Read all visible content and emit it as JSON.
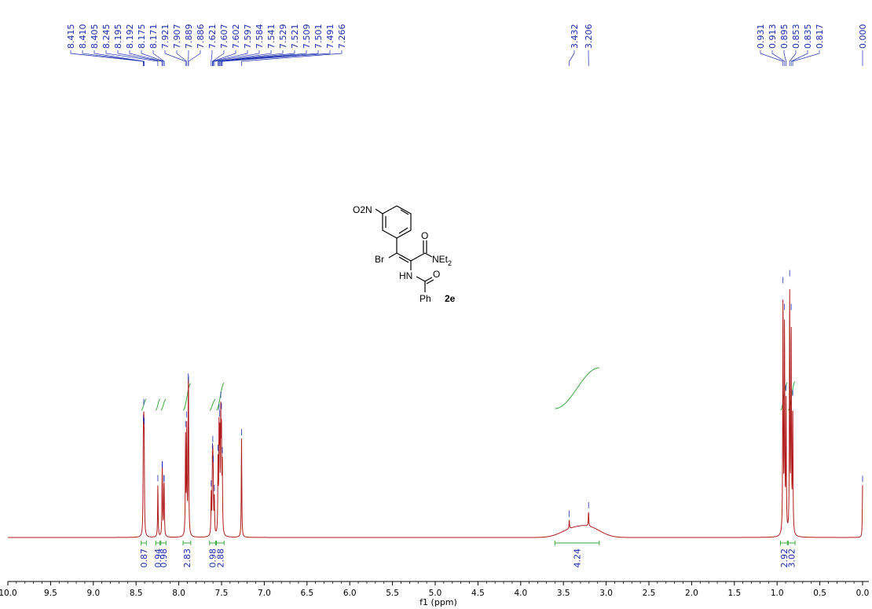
{
  "chart_data": {
    "type": "line",
    "title": "",
    "xlabel": "f1 (ppm)",
    "ylabel": "",
    "xlim": [
      10.0,
      0.0
    ],
    "x_reversed": true,
    "grid": false,
    "x_ticks": [
      "10.0",
      "9.5",
      "9.0",
      "8.5",
      "8.0",
      "7.5",
      "7.0",
      "6.5",
      "6.0",
      "5.5",
      "5.0",
      "4.5",
      "4.0",
      "3.5",
      "3.0",
      "2.5",
      "2.0",
      "1.5",
      "1.0",
      "0.5",
      "0.0"
    ],
    "series_color": "#b01a1a",
    "peak_label_color": "#1a2db0",
    "integral_color": "#3aa83a",
    "integral_label_color": "#1a2db0",
    "peak_labels": [
      "8.415",
      "8.410",
      "8.405",
      "8.245",
      "8.195",
      "8.192",
      "8.175",
      "8.171",
      "7.921",
      "7.907",
      "7.889",
      "7.886",
      "7.621",
      "7.607",
      "7.602",
      "7.597",
      "7.584",
      "7.541",
      "7.529",
      "7.521",
      "7.509",
      "7.501",
      "7.491",
      "7.266",
      "3.432",
      "3.206",
      "0.931",
      "0.913",
      "0.895",
      "0.853",
      "0.835",
      "0.817",
      "0.000"
    ],
    "peaks": [
      {
        "x": 8.415,
        "y": 0.27
      },
      {
        "x": 8.41,
        "y": 0.27
      },
      {
        "x": 8.405,
        "y": 0.26
      },
      {
        "x": 8.245,
        "y": 0.18
      },
      {
        "x": 8.195,
        "y": 0.14
      },
      {
        "x": 8.192,
        "y": 0.14
      },
      {
        "x": 8.175,
        "y": 0.12
      },
      {
        "x": 8.171,
        "y": 0.12
      },
      {
        "x": 7.921,
        "y": 0.34
      },
      {
        "x": 7.907,
        "y": 0.36
      },
      {
        "x": 7.889,
        "y": 0.33
      },
      {
        "x": 7.886,
        "y": 0.32
      },
      {
        "x": 7.621,
        "y": 0.14
      },
      {
        "x": 7.607,
        "y": 0.2
      },
      {
        "x": 7.602,
        "y": 0.19
      },
      {
        "x": 7.597,
        "y": 0.15
      },
      {
        "x": 7.584,
        "y": 0.12
      },
      {
        "x": 7.541,
        "y": 0.24
      },
      {
        "x": 7.529,
        "y": 0.34
      },
      {
        "x": 7.521,
        "y": 0.3
      },
      {
        "x": 7.509,
        "y": 0.37
      },
      {
        "x": 7.501,
        "y": 0.33
      },
      {
        "x": 7.491,
        "y": 0.22
      },
      {
        "x": 7.266,
        "y": 0.34
      },
      {
        "x": 3.432,
        "y": 0.03
      },
      {
        "x": 3.206,
        "y": 0.05
      },
      {
        "x": 0.931,
        "y": 0.83
      },
      {
        "x": 0.913,
        "y": 0.72
      },
      {
        "x": 0.895,
        "y": 0.45
      },
      {
        "x": 0.853,
        "y": 0.85
      },
      {
        "x": 0.835,
        "y": 0.72
      },
      {
        "x": 0.817,
        "y": 0.44
      },
      {
        "x": 0.0,
        "y": 0.18
      }
    ],
    "broad_humps": [
      {
        "x": 3.43,
        "y": 0.02,
        "width": 0.18
      },
      {
        "x": 3.21,
        "y": 0.035,
        "width": 0.2
      }
    ],
    "integrals": [
      {
        "from": 8.44,
        "to": 8.38,
        "value": "0.87"
      },
      {
        "from": 8.27,
        "to": 8.22,
        "value": "0.94"
      },
      {
        "from": 8.21,
        "to": 8.15,
        "value": "0.98"
      },
      {
        "from": 7.95,
        "to": 7.86,
        "value": "2.83"
      },
      {
        "from": 7.64,
        "to": 7.57,
        "value": "0.98"
      },
      {
        "from": 7.56,
        "to": 7.47,
        "value": "2.88"
      },
      {
        "from": 3.6,
        "to": 3.08,
        "value": "4.24"
      },
      {
        "from": 0.96,
        "to": 0.88,
        "value": "2.92"
      },
      {
        "from": 0.87,
        "to": 0.79,
        "value": "3.02"
      }
    ],
    "structure_labels": {
      "nitro": "O2N",
      "nitro_sub": "2",
      "bromo": "Br",
      "carbonyl_o1": "O",
      "amide_n": "NEt",
      "amide_sub": "2",
      "nh": "HN",
      "carbonyl_o2": "O",
      "phenyl": "Ph",
      "compound_id": "2e"
    }
  }
}
